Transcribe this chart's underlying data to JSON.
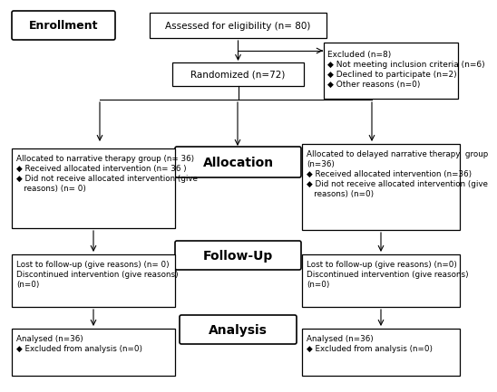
{
  "bg_color": "#ffffff",
  "enrollment_text": "Enrollment",
  "assessed_text": "Assessed for eligibility (n= 80)",
  "excluded_text": "Excluded (n=8)\n◆ Not meeting inclusion criteria (n=6)\n◆ Declined to participate (n=2)\n◆ Other reasons (n=0)",
  "randomized_text": "Randomized (n=72)",
  "allocation_text": "Allocation",
  "left_alloc_text": "Allocated to narrative therapy group (n= 36)\n◆ Received allocated intervention (n= 36 )\n◆ Did not receive allocated intervention (give\n   reasons) (n= 0)",
  "right_alloc_text": "Allocated to delayed narrative therapy  group\n(n=36)\n◆ Received allocated intervention (n=36)\n◆ Did not receive allocated intervention (give\n   reasons) (n=0)",
  "followup_text": "Follow-Up",
  "left_followup_text": "Lost to follow-up (give reasons) (n= 0)\nDiscontinued intervention (give reasons)\n(n=0)",
  "right_followup_text": "Lost to follow-up (give reasons) (n=0)\nDiscontinued intervention (give reasons)\n(n=0)",
  "analysis_text": "Analysis",
  "left_analysis_text": "Analysed (n=36)\n◆ Excluded from analysis (n=0)",
  "right_analysis_text": "Analysed (n=36)\n◆ Excluded from analysis (n=0)"
}
